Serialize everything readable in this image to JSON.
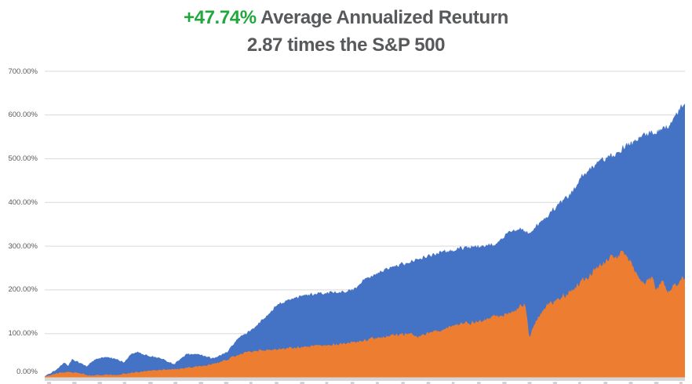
{
  "title": {
    "highlight": "+47.74%",
    "line1_rest": " Average Annualized Reuturn",
    "line2": "2.87 times the S&P 500",
    "highlight_color": "#21A73C",
    "text_color": "#58595B"
  },
  "colors": {
    "background": "#FFFFFF",
    "gridline": "#D9D9D9",
    "axis_band": "#D6D6D6",
    "tick_text": "#595959",
    "cropped_label_fragments": "#C6C6C6"
  },
  "chart_data": {
    "type": "area",
    "title": "+47.74% Average Annualized Reuturn",
    "subtitle": "2.87 times the S&P 500",
    "legend_position": "none",
    "grid": true,
    "y_axis": {
      "unit": "percent",
      "min": 0,
      "max": 700,
      "tick_step": 100,
      "ticks": [
        "0.00%",
        "100.00%",
        "200.00%",
        "300.00%",
        "400.00%",
        "500.00%",
        "600.00%",
        "700.00%"
      ]
    },
    "x_axis": {
      "labels_cropped": true,
      "note": "date tick labels are cut off at the bottom edge of the screenshot; only unreadable top fragments visible",
      "tick_fragment_count": 26
    },
    "series": [
      {
        "name": "series_blue",
        "color": "#4472C4",
        "end_value_pct": 624,
        "anchors": [
          [
            0,
            3
          ],
          [
            0.01,
            10
          ],
          [
            0.02,
            20
          ],
          [
            0.03,
            35
          ],
          [
            0.037,
            26
          ],
          [
            0.043,
            42
          ],
          [
            0.055,
            33
          ],
          [
            0.065,
            26
          ],
          [
            0.08,
            42
          ],
          [
            0.092,
            47
          ],
          [
            0.11,
            42
          ],
          [
            0.125,
            34
          ],
          [
            0.133,
            51
          ],
          [
            0.145,
            58
          ],
          [
            0.16,
            50
          ],
          [
            0.18,
            44
          ],
          [
            0.202,
            30
          ],
          [
            0.222,
            53
          ],
          [
            0.243,
            52
          ],
          [
            0.263,
            43
          ],
          [
            0.283,
            56
          ],
          [
            0.304,
            92
          ],
          [
            0.325,
            110
          ],
          [
            0.344,
            137
          ],
          [
            0.365,
            169
          ],
          [
            0.4,
            187
          ],
          [
            0.44,
            194
          ],
          [
            0.47,
            197
          ],
          [
            0.482,
            200
          ],
          [
            0.502,
            226
          ],
          [
            0.543,
            253
          ],
          [
            0.583,
            271
          ],
          [
            0.625,
            288
          ],
          [
            0.645,
            294
          ],
          [
            0.686,
            303
          ],
          [
            0.706,
            306
          ],
          [
            0.727,
            333
          ],
          [
            0.742,
            342
          ],
          [
            0.757,
            326
          ],
          [
            0.766,
            345
          ],
          [
            0.784,
            369
          ],
          [
            0.825,
            425
          ],
          [
            0.837,
            458
          ],
          [
            0.862,
            488
          ],
          [
            0.878,
            503
          ],
          [
            0.89,
            508
          ],
          [
            0.911,
            533
          ],
          [
            0.923,
            540
          ],
          [
            0.935,
            556
          ],
          [
            0.96,
            565
          ],
          [
            0.978,
            580
          ],
          [
            0.99,
            610
          ],
          [
            1,
            624
          ]
        ]
      },
      {
        "name": "series_orange",
        "color": "#ED7D31",
        "end_value_pct": 228,
        "anchors": [
          [
            0,
            2
          ],
          [
            0.022,
            10
          ],
          [
            0.04,
            12
          ],
          [
            0.053,
            10
          ],
          [
            0.071,
            4
          ],
          [
            0.096,
            6
          ],
          [
            0.114,
            5
          ],
          [
            0.132,
            10
          ],
          [
            0.151,
            13
          ],
          [
            0.181,
            17
          ],
          [
            0.212,
            20
          ],
          [
            0.243,
            25
          ],
          [
            0.267,
            32
          ],
          [
            0.292,
            45
          ],
          [
            0.31,
            55
          ],
          [
            0.328,
            60
          ],
          [
            0.347,
            63
          ],
          [
            0.365,
            65
          ],
          [
            0.4,
            69
          ],
          [
            0.441,
            73
          ],
          [
            0.482,
            80
          ],
          [
            0.518,
            90
          ],
          [
            0.543,
            95
          ],
          [
            0.567,
            100
          ],
          [
            0.583,
            92
          ],
          [
            0.604,
            103
          ],
          [
            0.625,
            110
          ],
          [
            0.645,
            122
          ],
          [
            0.666,
            125
          ],
          [
            0.686,
            131
          ],
          [
            0.702,
            140
          ],
          [
            0.723,
            146
          ],
          [
            0.743,
            163
          ],
          [
            0.751,
            169
          ],
          [
            0.757,
            90
          ],
          [
            0.767,
            128
          ],
          [
            0.784,
            165
          ],
          [
            0.804,
            181
          ],
          [
            0.825,
            200
          ],
          [
            0.837,
            217
          ],
          [
            0.865,
            253
          ],
          [
            0.884,
            270
          ],
          [
            0.902,
            287
          ],
          [
            0.919,
            253
          ],
          [
            0.926,
            235
          ],
          [
            0.939,
            212
          ],
          [
            0.947,
            229
          ],
          [
            0.956,
            199
          ],
          [
            0.963,
            222
          ],
          [
            0.975,
            194
          ],
          [
            0.988,
            217
          ],
          [
            1,
            228
          ]
        ]
      }
    ]
  }
}
